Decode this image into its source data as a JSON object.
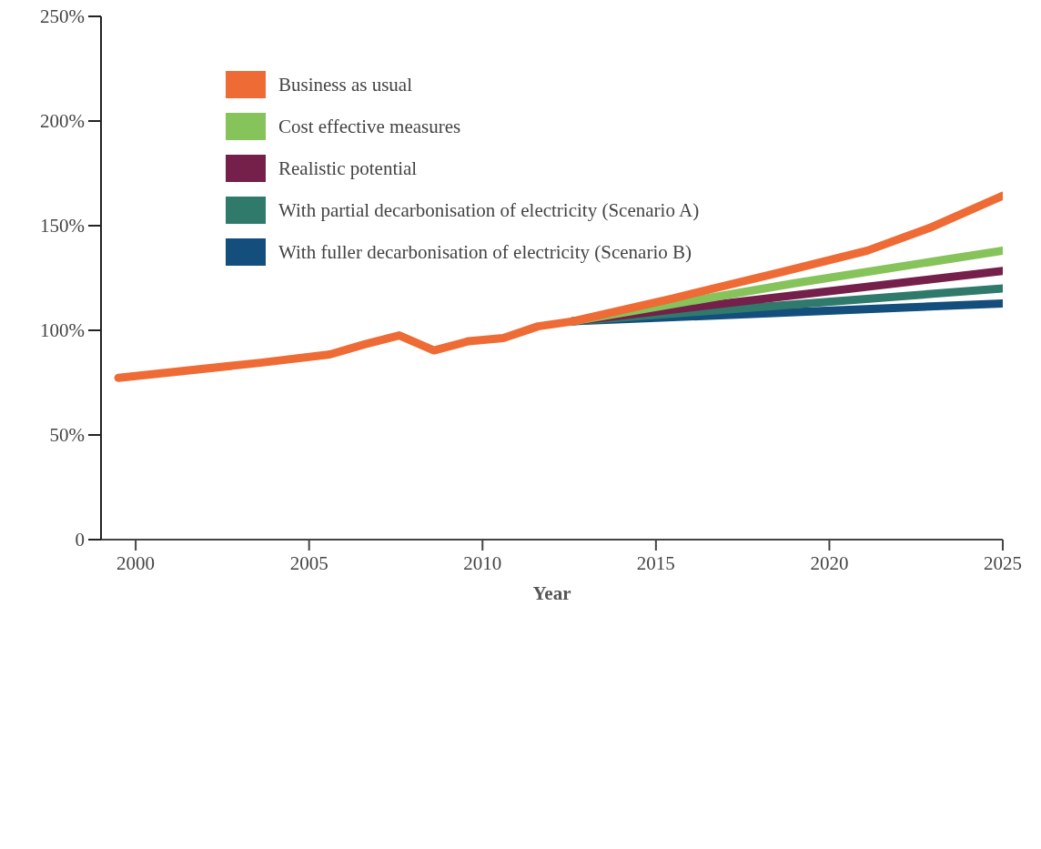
{
  "chart_data": {
    "type": "line",
    "xlabel": "Year",
    "legend": "top left",
    "xlim": [
      1999,
      2025
    ],
    "xticks": [
      2000,
      2005,
      2010,
      2015,
      2020,
      2025
    ],
    "ylim": [
      0,
      250
    ],
    "yticks": [
      {
        "value": 0,
        "label": "0"
      },
      {
        "value": 50,
        "label": "50%"
      },
      {
        "value": 100,
        "label": "100%"
      },
      {
        "value": 150,
        "label": "150%"
      },
      {
        "value": 200,
        "label": "200%"
      },
      {
        "value": 250,
        "label": "250%"
      }
    ],
    "series": [
      {
        "name": "Business as usual",
        "color": "#ee6b35",
        "x": [
          1999.5,
          2003.6,
          2005.6,
          2006.6,
          2007.6,
          2008.6,
          2009.6,
          2010.6,
          2011.6,
          2012.6,
          2015.5,
          2018.6,
          2021.1,
          2022.9,
          2025
        ],
        "values": [
          77.3,
          84.5,
          88.5,
          93.3,
          97.6,
          90.4,
          94.8,
          96.3,
          101.9,
          104.3,
          115.3,
          127.8,
          138.1,
          149,
          164.3
        ]
      },
      {
        "name": "Cost effective measures",
        "color": "#86c35a",
        "x": [
          2012.6,
          2019,
          2025
        ],
        "values": [
          104.3,
          122.5,
          138.1
        ]
      },
      {
        "name": "Realistic potential",
        "color": "#74204a",
        "x": [
          2012.6,
          2025
        ],
        "values": [
          104.3,
          128.4
        ]
      },
      {
        "name": "With partial decarbonisation of electricity (Scenario A)",
        "color": "#2f7a6b",
        "x": [
          2012.6,
          2025
        ],
        "values": [
          104.3,
          120
        ]
      },
      {
        "name": "With fuller decarbonisation of electricity (Scenario B)",
        "color": "#134e7c",
        "x": [
          2012.6,
          2025
        ],
        "values": [
          104.3,
          112.8
        ]
      }
    ]
  }
}
